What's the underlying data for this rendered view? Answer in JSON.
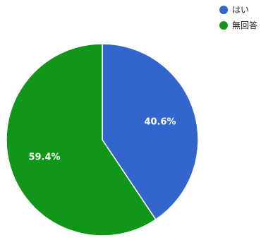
{
  "chart_data": {
    "type": "pie",
    "series": [
      {
        "name": "はい",
        "value": 40.6,
        "label": "40.6%",
        "color": "#3366cc"
      },
      {
        "name": "無回答",
        "value": 59.4,
        "label": "59.4%",
        "color": "#109618"
      }
    ],
    "start_angle_deg": 0,
    "direction": "clockwise",
    "legend_position": "top-right"
  }
}
